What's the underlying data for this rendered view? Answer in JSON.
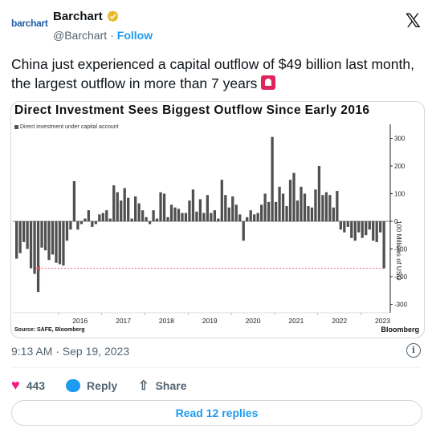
{
  "account": {
    "logo_text": "barchart",
    "name": "Barchart",
    "handle": "@Barchart",
    "separator": "·",
    "follow_label": "Follow",
    "platform_icon": "x-logo-icon"
  },
  "tweet": {
    "text": "China just experienced a capital outflow of $49 billion last month, the largest outflow in more than 7 years",
    "emoji": "rotating-light-icon",
    "timestamp": "9:13 AM · Sep 19, 2023"
  },
  "engagement": {
    "likes": "443",
    "reply_label": "Reply",
    "share_label": "Share",
    "read_replies_label": "Read 12 replies"
  },
  "colors": {
    "accent": "#1d9bf0",
    "like": "#f91880",
    "bar": "#505050",
    "reference_line": "#e05060"
  },
  "chart_data": {
    "type": "bar",
    "title": "Direct Investment Sees Biggest Outflow Since Early 2016",
    "legend": "Direct investment under capital account",
    "ylabel": "100 Millions of USD",
    "source": "Source: SAFE, Bloomberg",
    "brand": "Bloomberg",
    "ylim": [
      -330,
      340
    ],
    "yticks": [
      300,
      200,
      100,
      0,
      -100,
      -200,
      -300
    ],
    "xticks": [
      "2016",
      "2017",
      "2018",
      "2019",
      "2020",
      "2021",
      "2022",
      "2023"
    ],
    "reference_value": -170,
    "start": "2015-01",
    "values": [
      -135,
      -115,
      -75,
      -100,
      -170,
      -190,
      -255,
      -95,
      -105,
      -140,
      -120,
      -150,
      -155,
      -160,
      -70,
      -30,
      145,
      -30,
      -10,
      10,
      40,
      -20,
      -10,
      25,
      30,
      40,
      10,
      130,
      105,
      75,
      120,
      85,
      10,
      90,
      65,
      40,
      15,
      -10,
      40,
      10,
      105,
      100,
      15,
      60,
      50,
      45,
      30,
      30,
      75,
      115,
      35,
      80,
      30,
      95,
      30,
      40,
      10,
      150,
      95,
      50,
      90,
      60,
      25,
      -70,
      15,
      40,
      25,
      30,
      60,
      100,
      70,
      305,
      70,
      125,
      100,
      55,
      150,
      175,
      75,
      125,
      100,
      55,
      50,
      115,
      200,
      95,
      105,
      95,
      50,
      110,
      -30,
      -40,
      -20,
      -60,
      -70,
      -40,
      -60,
      -50,
      -30,
      -70,
      -75,
      -40,
      -170
    ]
  }
}
